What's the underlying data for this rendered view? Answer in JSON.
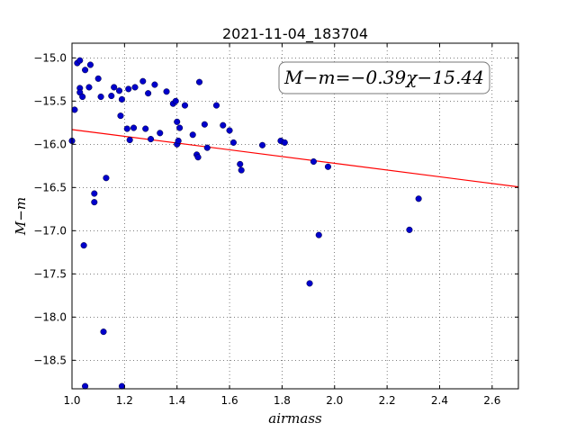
{
  "chart_data": {
    "type": "scatter",
    "title": "2021-11-04_183704",
    "xlabel": "airmass",
    "ylabel": "M−m",
    "xlim": [
      1.0,
      2.7
    ],
    "ylim": [
      -18.83,
      -14.83
    ],
    "xticks": [
      1.0,
      1.2,
      1.4,
      1.6,
      1.8,
      2.0,
      2.2,
      2.4,
      2.6
    ],
    "xtick_labels": [
      "1.0",
      "1.2",
      "1.4",
      "1.6",
      "1.8",
      "2.0",
      "2.2",
      "2.4",
      "2.6"
    ],
    "yticks": [
      -15.0,
      -15.5,
      -16.0,
      -16.5,
      -17.0,
      -17.5,
      -18.0,
      -18.5
    ],
    "ytick_labels": [
      "−15.0",
      "−15.5",
      "−16.0",
      "−16.5",
      "−17.0",
      "−17.5",
      "−18.0",
      "−18.5"
    ],
    "grid": true,
    "annotation": "M−m=−0.39χ−15.44",
    "annotation_position": "top-right",
    "colors": {
      "points": "#0000cc",
      "fit": "#ff0000"
    },
    "fit": {
      "slope": -0.39,
      "intercept": -15.44
    },
    "points": [
      [
        1.0,
        -15.96
      ],
      [
        1.01,
        -15.6
      ],
      [
        1.02,
        -15.06
      ],
      [
        1.03,
        -15.03
      ],
      [
        1.03,
        -15.35
      ],
      [
        1.03,
        -15.4
      ],
      [
        1.04,
        -15.45
      ],
      [
        1.05,
        -15.14
      ],
      [
        1.045,
        -17.17
      ],
      [
        1.05,
        -18.8
      ],
      [
        1.065,
        -15.34
      ],
      [
        1.07,
        -15.08
      ],
      [
        1.085,
        -16.57
      ],
      [
        1.085,
        -16.67
      ],
      [
        1.1,
        -15.24
      ],
      [
        1.11,
        -15.45
      ],
      [
        1.12,
        -18.17
      ],
      [
        1.13,
        -16.39
      ],
      [
        1.15,
        -15.44
      ],
      [
        1.16,
        -15.34
      ],
      [
        1.18,
        -15.38
      ],
      [
        1.185,
        -15.67
      ],
      [
        1.19,
        -15.48
      ],
      [
        1.19,
        -18.8
      ],
      [
        1.21,
        -15.82
      ],
      [
        1.215,
        -15.36
      ],
      [
        1.22,
        -15.95
      ],
      [
        1.235,
        -15.81
      ],
      [
        1.24,
        -15.34
      ],
      [
        1.27,
        -15.27
      ],
      [
        1.28,
        -15.82
      ],
      [
        1.29,
        -15.41
      ],
      [
        1.3,
        -15.94
      ],
      [
        1.315,
        -15.31
      ],
      [
        1.335,
        -15.87
      ],
      [
        1.36,
        -15.39
      ],
      [
        1.385,
        -15.53
      ],
      [
        1.395,
        -15.5
      ],
      [
        1.4,
        -15.74
      ],
      [
        1.4,
        -16.0
      ],
      [
        1.405,
        -15.96
      ],
      [
        1.41,
        -15.81
      ],
      [
        1.43,
        -15.55
      ],
      [
        1.46,
        -15.89
      ],
      [
        1.475,
        -16.12
      ],
      [
        1.48,
        -16.15
      ],
      [
        1.485,
        -15.28
      ],
      [
        1.505,
        -15.77
      ],
      [
        1.515,
        -16.04
      ],
      [
        1.55,
        -15.55
      ],
      [
        1.575,
        -15.78
      ],
      [
        1.6,
        -15.84
      ],
      [
        1.615,
        -15.98
      ],
      [
        1.64,
        -16.23
      ],
      [
        1.645,
        -16.3
      ],
      [
        1.725,
        -16.01
      ],
      [
        1.795,
        -15.96
      ],
      [
        1.81,
        -15.98
      ],
      [
        1.905,
        -17.61
      ],
      [
        1.92,
        -16.2
      ],
      [
        1.94,
        -17.05
      ],
      [
        1.975,
        -16.26
      ],
      [
        2.285,
        -16.99
      ],
      [
        2.32,
        -16.63
      ]
    ]
  }
}
